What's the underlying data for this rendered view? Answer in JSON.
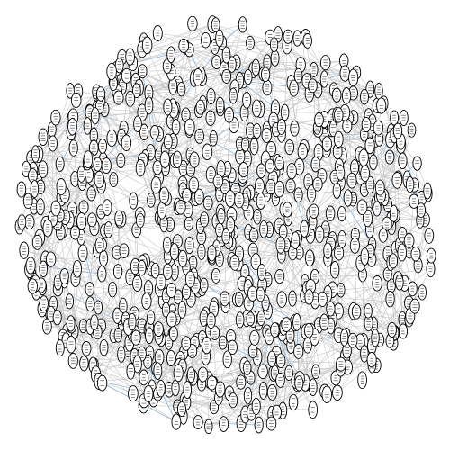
{
  "diagram": {
    "type": "network-graph",
    "node_shape": "ellipse",
    "node_count": 860,
    "edge_count": 2400,
    "highlighted_edge_count": 90,
    "colors": {
      "background": "#ffffff",
      "node_fill": "#ffffff",
      "node_stroke": "#000000",
      "edge": "#c8c8c8",
      "edge_highlight": "#8fb3d3"
    }
  }
}
